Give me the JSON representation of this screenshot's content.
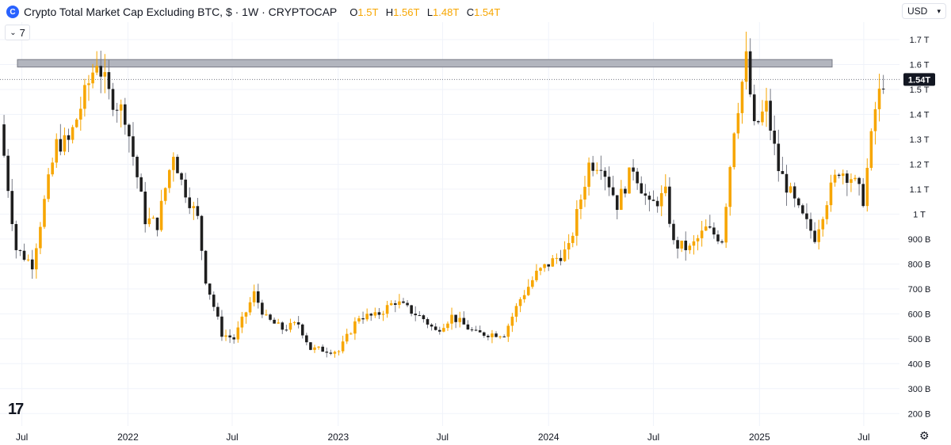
{
  "header": {
    "title": "Crypto Total Market Cap Excluding BTC, $ · 1W · CRYPTOCAP",
    "ohlc": [
      {
        "k": "O",
        "v": "1.5T"
      },
      {
        "k": "H",
        "v": "1.56T"
      },
      {
        "k": "L",
        "v": "1.48T"
      },
      {
        "k": "C",
        "v": "1.54T"
      }
    ],
    "indicator_count": "7",
    "currency": "USD"
  },
  "colors": {
    "up": "#f7a600",
    "down": "#1e1e1e",
    "zone": "#b2b5be",
    "grid": "#f0f3fa",
    "price_tag": "#131722"
  },
  "chart_data": {
    "type": "candlestick",
    "title": "Crypto Total Market Cap Excluding BTC, $ · 1W · CRYPTOCAP",
    "ylim": [
      150,
      1770
    ],
    "x_ticks": [
      {
        "label": "Jul",
        "date": "2021-07-01"
      },
      {
        "label": "2022",
        "date": "2022-01-01"
      },
      {
        "label": "Jul",
        "date": "2022-07-01"
      },
      {
        "label": "2023",
        "date": "2023-01-01"
      },
      {
        "label": "Jul",
        "date": "2023-07-01"
      },
      {
        "label": "2024",
        "date": "2024-01-01"
      },
      {
        "label": "Jul",
        "date": "2024-07-01"
      },
      {
        "label": "2025",
        "date": "2025-01-01"
      },
      {
        "label": "Jul",
        "date": "2025-07-01"
      }
    ],
    "y_ticks": [
      {
        "label": "200 B",
        "v": 200
      },
      {
        "label": "300 B",
        "v": 300
      },
      {
        "label": "400 B",
        "v": 400
      },
      {
        "label": "500 B",
        "v": 500
      },
      {
        "label": "600 B",
        "v": 600
      },
      {
        "label": "700 B",
        "v": 700
      },
      {
        "label": "800 B",
        "v": 800
      },
      {
        "label": "900 B",
        "v": 900
      },
      {
        "label": "1 T",
        "v": 1000
      },
      {
        "label": "1.1 T",
        "v": 1100
      },
      {
        "label": "1.2 T",
        "v": 1200
      },
      {
        "label": "1.3 T",
        "v": 1300
      },
      {
        "label": "1.4 T",
        "v": 1400
      },
      {
        "label": "1.5 T",
        "v": 1500
      },
      {
        "label": "1.6 T",
        "v": 1600
      },
      {
        "label": "1.7 T",
        "v": 1700
      }
    ],
    "resistance_zone": [
      1590,
      1620
    ],
    "last_price": {
      "label": "1.54T",
      "v": 1540
    },
    "close_path": [
      [
        "2021-05-24",
        1360
      ],
      [
        "2021-06-21",
        860
      ],
      [
        "2021-07-19",
        800
      ],
      [
        "2021-08-09",
        1050
      ],
      [
        "2021-08-30",
        1280
      ],
      [
        "2021-09-20",
        1290
      ],
      [
        "2021-10-11",
        1430
      ],
      [
        "2021-11-08",
        1620
      ],
      [
        "2021-11-29",
        1480
      ],
      [
        "2021-12-27",
        1400
      ],
      [
        "2022-01-17",
        1150
      ],
      [
        "2022-01-31",
        980
      ],
      [
        "2022-02-21",
        960
      ],
      [
        "2022-03-21",
        1250
      ],
      [
        "2022-04-04",
        1130
      ],
      [
        "2022-05-02",
        980
      ],
      [
        "2022-05-16",
        740
      ],
      [
        "2022-06-13",
        520
      ],
      [
        "2022-07-04",
        500
      ],
      [
        "2022-08-08",
        680
      ],
      [
        "2022-08-29",
        580
      ],
      [
        "2022-09-26",
        540
      ],
      [
        "2022-10-24",
        560
      ],
      [
        "2022-11-14",
        460
      ],
      [
        "2023-01-02",
        450
      ],
      [
        "2023-02-06",
        590
      ],
      [
        "2023-03-06",
        590
      ],
      [
        "2023-04-10",
        650
      ],
      [
        "2023-05-29",
        580
      ],
      [
        "2023-06-19",
        530
      ],
      [
        "2023-07-17",
        590
      ],
      [
        "2023-08-28",
        520
      ],
      [
        "2023-10-16",
        520
      ],
      [
        "2023-11-13",
        660
      ],
      [
        "2023-12-11",
        760
      ],
      [
        "2024-01-01",
        800
      ],
      [
        "2024-02-05",
        860
      ],
      [
        "2024-03-11",
        1200
      ],
      [
        "2024-04-01",
        1210
      ],
      [
        "2024-04-29",
        1040
      ],
      [
        "2024-05-27",
        1190
      ],
      [
        "2024-06-24",
        1030
      ],
      [
        "2024-07-22",
        1080
      ],
      [
        "2024-08-05",
        880
      ],
      [
        "2024-09-02",
        860
      ],
      [
        "2024-09-30",
        940
      ],
      [
        "2024-10-28",
        900
      ],
      [
        "2024-11-18",
        1350
      ],
      [
        "2024-12-09",
        1620
      ],
      [
        "2024-12-23",
        1340
      ],
      [
        "2025-01-13",
        1430
      ],
      [
        "2025-02-03",
        1180
      ],
      [
        "2025-02-24",
        1080
      ],
      [
        "2025-03-10",
        1010
      ],
      [
        "2025-04-07",
        910
      ],
      [
        "2025-04-28",
        1060
      ],
      [
        "2025-05-19",
        1180
      ],
      [
        "2025-06-09",
        1150
      ],
      [
        "2025-06-30",
        1060
      ],
      [
        "2025-07-21",
        1420
      ],
      [
        "2025-08-04",
        1540
      ]
    ]
  }
}
